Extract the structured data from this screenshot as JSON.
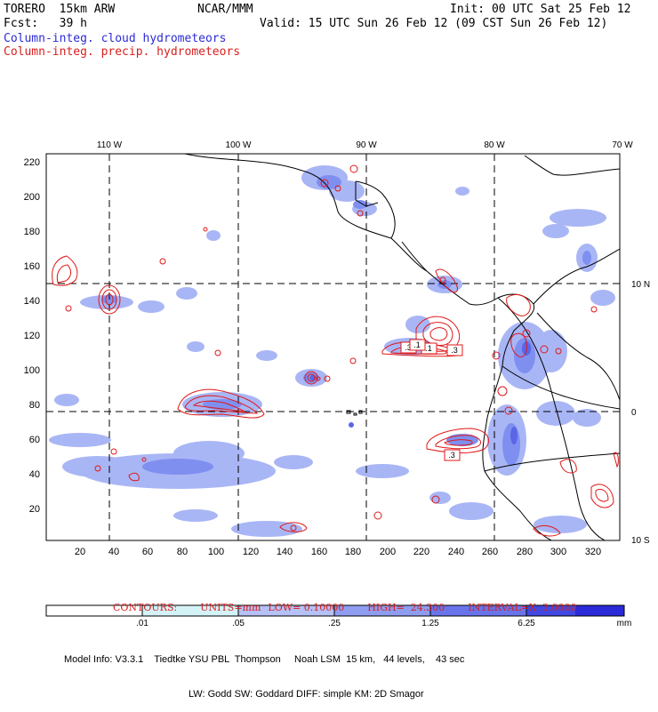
{
  "header": {
    "model": "TORERO  15km ARW",
    "org": "NCAR/MMM",
    "init": "Init: 00 UTC Sat 25 Feb 12",
    "fcst": "Fcst:   39 h",
    "valid": "Valid: 15 UTC Sun 26 Feb 12 (09 CST Sun 26 Feb 12)",
    "field1": "Column-integ. cloud hydrometeors",
    "field2": "Column-integ. precip. hydrometeors"
  },
  "colors": {
    "cloud_text": "#2b2bd6",
    "precip_text": "#d81e1e",
    "cloud_light": "#a9b6f5",
    "cloud_mid": "#7f8ff0",
    "cloud_dark": "#5a66e6",
    "precip_contour": "#e01818"
  },
  "map": {
    "top_lon_labels": [
      "110 W",
      "100 W",
      "90 W",
      "80 W",
      "70 W"
    ],
    "right_lat_labels": [
      "10 N",
      "0",
      "10 S"
    ],
    "y_axis_ticks": [
      "220",
      "200",
      "180",
      "160",
      "140",
      "120",
      "100",
      "80",
      "60",
      "40",
      "20"
    ],
    "x_axis_ticks": [
      "20",
      "40",
      "60",
      "80",
      "100",
      "120",
      "140",
      "160",
      "180",
      "200",
      "220",
      "240",
      "260",
      "280",
      "300",
      "320"
    ],
    "contour_labels": [
      ".3",
      ".1",
      ".3",
      ".1",
      ".3"
    ]
  },
  "contours_info": {
    "label": "CONTOURS:",
    "units": "UNITS=mm",
    "low": "LOW= 0.10000",
    "high": "HIGH=  24.300",
    "interval": "INTERVAL=X  3.0000"
  },
  "colorbar": {
    "ticks": [
      ".01",
      ".05",
      ".25",
      "1.25",
      "6.25"
    ],
    "units": "mm",
    "colors": [
      "#ffffff",
      "#d4f3f7",
      "#b6c1f5",
      "#8f9df0",
      "#6a74ea",
      "#4148e0",
      "#2a2ad8"
    ]
  },
  "model_info": {
    "line1": "Model Info: V3.3.1    Tiedtke YSU PBL  Thompson     Noah LSM  15 km,   44 levels,    43 sec",
    "line2": "LW: Godd SW: Goddard DIFF: simple KM: 2D Smagor"
  }
}
